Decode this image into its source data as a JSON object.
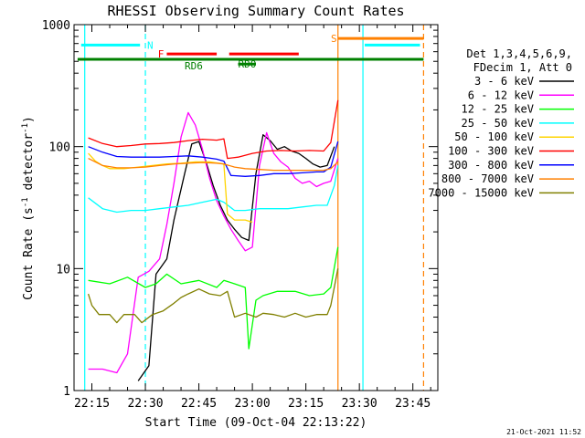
{
  "chart_data": {
    "type": "line",
    "title": "RHESSI Observing Summary Count Rates",
    "xlabel": "Start Time (09-Oct-04 22:13:22)",
    "ylabel": "Count Rate (s",
    "ylabel_sup": "-1",
    "ylabel_mid": " detector",
    "ylabel_end": ")",
    "y_scale": "log",
    "xlim": [
      "22:10",
      "23:52"
    ],
    "ylim": [
      1,
      1000
    ],
    "x_ticks": [
      "22:15",
      "22:30",
      "22:45",
      "23:00",
      "23:15",
      "23:30",
      "23:45"
    ],
    "y_ticks": [
      "1",
      "10",
      "100",
      "1000"
    ],
    "legend_placement": "right",
    "legend_header": [
      "Det 1,3,4,5,6,9,",
      "FDecim 1, Att 0"
    ],
    "series": [
      {
        "name": "3 - 6 keV",
        "color": "#000000",
        "points": [
          [
            "22:28",
            1.2
          ],
          [
            "22:31",
            1.6
          ],
          [
            "22:33",
            9
          ],
          [
            "22:36",
            12
          ],
          [
            "22:38",
            25
          ],
          [
            "22:41",
            60
          ],
          [
            "22:43",
            105
          ],
          [
            "22:45",
            110
          ],
          [
            "22:47",
            75
          ],
          [
            "22:49",
            48
          ],
          [
            "22:51",
            33
          ],
          [
            "22:53",
            25
          ],
          [
            "22:55",
            21
          ],
          [
            "22:57",
            18
          ],
          [
            "22:59",
            17
          ],
          [
            "23:01",
            60
          ],
          [
            "23:03",
            125
          ],
          [
            "23:05",
            112
          ],
          [
            "23:07",
            95
          ],
          [
            "23:09",
            100
          ],
          [
            "23:11",
            92
          ],
          [
            "23:13",
            88
          ],
          [
            "23:15",
            80
          ],
          [
            "23:17",
            72
          ],
          [
            "23:19",
            68
          ],
          [
            "23:21",
            70
          ],
          [
            "23:23",
            100
          ]
        ]
      },
      {
        "name": "6 - 12 keV",
        "color": "#ff00ff",
        "points": [
          [
            "22:14",
            1.5
          ],
          [
            "22:18",
            1.5
          ],
          [
            "22:22",
            1.4
          ],
          [
            "22:25",
            2.0
          ],
          [
            "22:28",
            8.5
          ],
          [
            "22:31",
            9.5
          ],
          [
            "22:34",
            12
          ],
          [
            "22:36",
            23
          ],
          [
            "22:38",
            50
          ],
          [
            "22:40",
            120
          ],
          [
            "22:42",
            190
          ],
          [
            "22:44",
            150
          ],
          [
            "22:46",
            95
          ],
          [
            "22:48",
            55
          ],
          [
            "22:50",
            36
          ],
          [
            "22:52",
            27
          ],
          [
            "22:54",
            21
          ],
          [
            "22:56",
            17
          ],
          [
            "22:58",
            14
          ],
          [
            "23:00",
            15
          ],
          [
            "23:02",
            70
          ],
          [
            "23:04",
            130
          ],
          [
            "23:06",
            88
          ],
          [
            "23:08",
            75
          ],
          [
            "23:10",
            68
          ],
          [
            "23:12",
            55
          ],
          [
            "23:14",
            50
          ],
          [
            "23:16",
            52
          ],
          [
            "23:18",
            47
          ],
          [
            "23:20",
            50
          ],
          [
            "23:22",
            52
          ],
          [
            "23:24",
            80
          ]
        ]
      },
      {
        "name": "12 - 25 keV",
        "color": "#00ff00",
        "points": [
          [
            "22:14",
            8
          ],
          [
            "22:20",
            7.5
          ],
          [
            "22:25",
            8.5
          ],
          [
            "22:30",
            7
          ],
          [
            "22:33",
            7.5
          ],
          [
            "22:36",
            9
          ],
          [
            "22:40",
            7.5
          ],
          [
            "22:45",
            8
          ],
          [
            "22:50",
            7
          ],
          [
            "22:52",
            8
          ],
          [
            "22:55",
            7.5
          ],
          [
            "22:58",
            7
          ],
          [
            "22:59",
            2.2
          ],
          [
            "23:01",
            5.5
          ],
          [
            "23:03",
            6
          ],
          [
            "23:07",
            6.5
          ],
          [
            "23:12",
            6.5
          ],
          [
            "23:16",
            6
          ],
          [
            "23:20",
            6.2
          ],
          [
            "23:22",
            7
          ],
          [
            "23:24",
            15
          ]
        ]
      },
      {
        "name": "25 - 50 keV",
        "color": "#00ffff",
        "points": [
          [
            "22:14",
            38
          ],
          [
            "22:18",
            31
          ],
          [
            "22:22",
            29
          ],
          [
            "22:26",
            30
          ],
          [
            "22:30",
            30
          ],
          [
            "22:34",
            31
          ],
          [
            "22:38",
            32
          ],
          [
            "22:42",
            33
          ],
          [
            "22:46",
            35
          ],
          [
            "22:50",
            37
          ],
          [
            "22:52",
            35
          ],
          [
            "22:55",
            30
          ],
          [
            "22:58",
            30
          ],
          [
            "23:02",
            31
          ],
          [
            "23:06",
            31
          ],
          [
            "23:10",
            31
          ],
          [
            "23:14",
            32
          ],
          [
            "23:18",
            33
          ],
          [
            "23:21",
            33
          ],
          [
            "23:23",
            48
          ],
          [
            "23:24",
            70
          ]
        ]
      },
      {
        "name": "50 - 100 keV",
        "color": "#ffd400",
        "points": [
          [
            "22:14",
            88
          ],
          [
            "22:16",
            76
          ],
          [
            "22:18",
            70
          ],
          [
            "22:20",
            66
          ],
          [
            "22:24",
            66
          ],
          [
            "22:28",
            68
          ],
          [
            "22:32",
            70
          ],
          [
            "22:36",
            72
          ],
          [
            "22:40",
            73
          ],
          [
            "22:44",
            75
          ],
          [
            "22:48",
            75
          ],
          [
            "22:52",
            72
          ],
          [
            "22:53",
            28
          ],
          [
            "22:55",
            25
          ],
          [
            "22:58",
            25
          ],
          [
            "23:00",
            24
          ]
        ]
      },
      {
        "name": "100 - 300 keV",
        "color": "#ff0000",
        "points": [
          [
            "22:14",
            118
          ],
          [
            "22:18",
            106
          ],
          [
            "22:22",
            100
          ],
          [
            "22:26",
            102
          ],
          [
            "22:30",
            105
          ],
          [
            "22:34",
            106
          ],
          [
            "22:38",
            108
          ],
          [
            "22:42",
            112
          ],
          [
            "22:46",
            115
          ],
          [
            "22:50",
            113
          ],
          [
            "22:52",
            116
          ],
          [
            "22:53",
            80
          ],
          [
            "22:56",
            82
          ],
          [
            "23:00",
            88
          ],
          [
            "23:04",
            92
          ],
          [
            "23:08",
            93
          ],
          [
            "23:12",
            92
          ],
          [
            "23:16",
            93
          ],
          [
            "23:20",
            92
          ],
          [
            "23:22",
            108
          ],
          [
            "23:24",
            240
          ]
        ]
      },
      {
        "name": "300 - 800 keV",
        "color": "#0000ff",
        "points": [
          [
            "22:14",
            100
          ],
          [
            "22:18",
            90
          ],
          [
            "22:22",
            83
          ],
          [
            "22:26",
            82
          ],
          [
            "22:30",
            82
          ],
          [
            "22:34",
            82
          ],
          [
            "22:38",
            83
          ],
          [
            "22:42",
            84
          ],
          [
            "22:46",
            82
          ],
          [
            "22:50",
            79
          ],
          [
            "22:52",
            76
          ],
          [
            "22:54",
            58
          ],
          [
            "22:58",
            57
          ],
          [
            "23:02",
            58
          ],
          [
            "23:06",
            60
          ],
          [
            "23:10",
            60
          ],
          [
            "23:14",
            61
          ],
          [
            "23:18",
            62
          ],
          [
            "23:20",
            62
          ],
          [
            "23:22",
            68
          ],
          [
            "23:24",
            110
          ]
        ]
      },
      {
        "name": "800 - 7000 keV",
        "color": "#ff8000",
        "points": [
          [
            "22:14",
            80
          ],
          [
            "22:18",
            70
          ],
          [
            "22:22",
            67
          ],
          [
            "22:26",
            67
          ],
          [
            "22:30",
            68
          ],
          [
            "22:34",
            70
          ],
          [
            "22:38",
            72
          ],
          [
            "22:42",
            73
          ],
          [
            "22:46",
            74
          ],
          [
            "22:50",
            73
          ],
          [
            "22:52",
            72
          ],
          [
            "22:55",
            68
          ],
          [
            "22:58",
            66
          ],
          [
            "23:02",
            65
          ],
          [
            "23:06",
            64
          ],
          [
            "23:10",
            64
          ],
          [
            "23:14",
            64
          ],
          [
            "23:18",
            64
          ],
          [
            "23:20",
            64
          ],
          [
            "23:22",
            66
          ],
          [
            "23:24",
            75
          ]
        ]
      },
      {
        "name": "7000 - 15000 keV",
        "color": "#808000",
        "points": [
          [
            "22:14",
            6.2
          ],
          [
            "22:15",
            5
          ],
          [
            "22:17",
            4.2
          ],
          [
            "22:20",
            4.2
          ],
          [
            "22:22",
            3.6
          ],
          [
            "22:24",
            4.2
          ],
          [
            "22:27",
            4.2
          ],
          [
            "22:29",
            3.6
          ],
          [
            "22:32",
            4.2
          ],
          [
            "22:35",
            4.5
          ],
          [
            "22:38",
            5.2
          ],
          [
            "22:40",
            5.8
          ],
          [
            "22:42",
            6.2
          ],
          [
            "22:45",
            6.8
          ],
          [
            "22:48",
            6.2
          ],
          [
            "22:51",
            6.0
          ],
          [
            "22:53",
            6.5
          ],
          [
            "22:55",
            4.0
          ],
          [
            "22:58",
            4.3
          ],
          [
            "23:01",
            4.0
          ],
          [
            "23:03",
            4.3
          ],
          [
            "23:06",
            4.2
          ],
          [
            "23:09",
            4.0
          ],
          [
            "23:12",
            4.3
          ],
          [
            "23:15",
            4.0
          ],
          [
            "23:18",
            4.2
          ],
          [
            "23:21",
            4.2
          ],
          [
            "23:22",
            5
          ],
          [
            "23:24",
            10
          ]
        ]
      }
    ],
    "flags": [
      {
        "label": "N",
        "color": "#00ffff",
        "y": 680,
        "segments": [
          [
            "22:12",
            "22:28:30"
          ],
          [
            "23:31:30",
            "23:47"
          ]
        ],
        "label_at": "22:30:30"
      },
      {
        "label": "F",
        "color": "#ff0000",
        "y": 575,
        "segments": [
          [
            "22:36",
            "22:50"
          ],
          [
            "22:53:30",
            "23:13"
          ]
        ],
        "label_at": "22:33:30"
      },
      {
        "label": "S",
        "color": "#ff8000",
        "y": 770,
        "segments": [
          [
            "23:24",
            "23:48"
          ]
        ],
        "label_at": "23:22"
      },
      {
        "label": "",
        "color": "#008000",
        "y": 520,
        "segments": [
          [
            "22:11",
            "23:48"
          ]
        ],
        "label_at": ""
      },
      {
        "label": "RD0",
        "color": "#008000",
        "y": 475,
        "segments": [
          [
            "22:56",
            "23:01"
          ]
        ],
        "label_at": "22:56"
      },
      {
        "label": "RD6",
        "color": "#008000",
        "y": 460,
        "segments": [],
        "label_at": "22:41"
      }
    ],
    "vlines": [
      {
        "x": "22:13",
        "color": "#00ffff",
        "style": "solid"
      },
      {
        "x": "22:30",
        "color": "#00ffff",
        "style": "dashed"
      },
      {
        "x": "23:24",
        "color": "#ff8000",
        "style": "solid"
      },
      {
        "x": "23:31",
        "color": "#00ffff",
        "style": "solid"
      },
      {
        "x": "23:48",
        "color": "#ff8000",
        "style": "dashed"
      }
    ],
    "grid": false
  },
  "footer": {
    "date": "21-Oct-2021 11:52"
  }
}
